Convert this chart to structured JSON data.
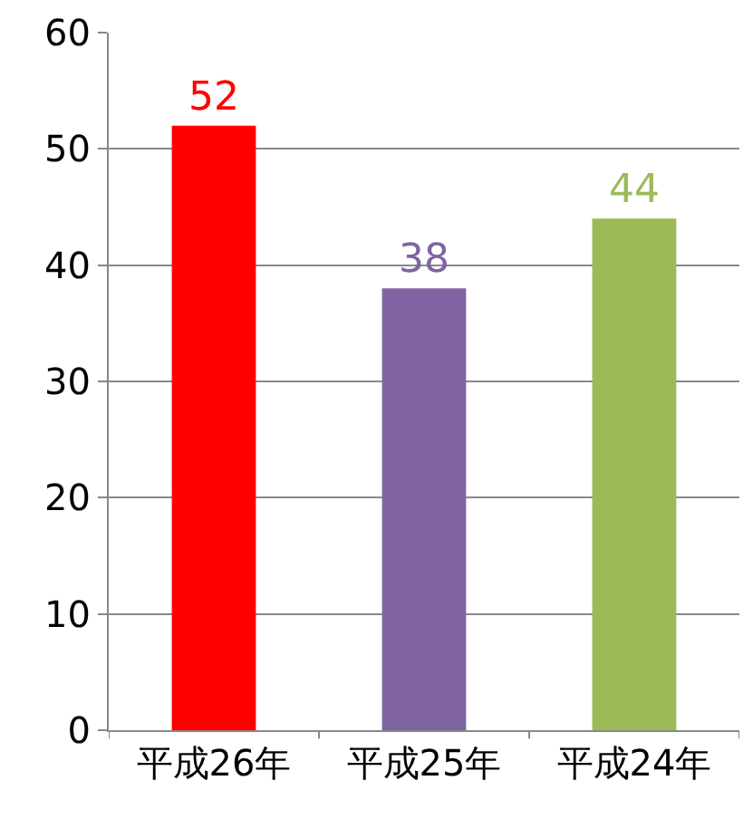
{
  "chart_data": {
    "type": "bar",
    "categories": [
      "平成26年",
      "平成25年",
      "平成24年"
    ],
    "values": [
      52,
      38,
      44
    ],
    "colors": [
      "#ff0000",
      "#8064a2",
      "#9bbb59"
    ],
    "ylim": [
      0,
      60
    ],
    "yticks": [
      0,
      10,
      20,
      30,
      40,
      50,
      60
    ],
    "grid": "y",
    "data_labels": true
  }
}
